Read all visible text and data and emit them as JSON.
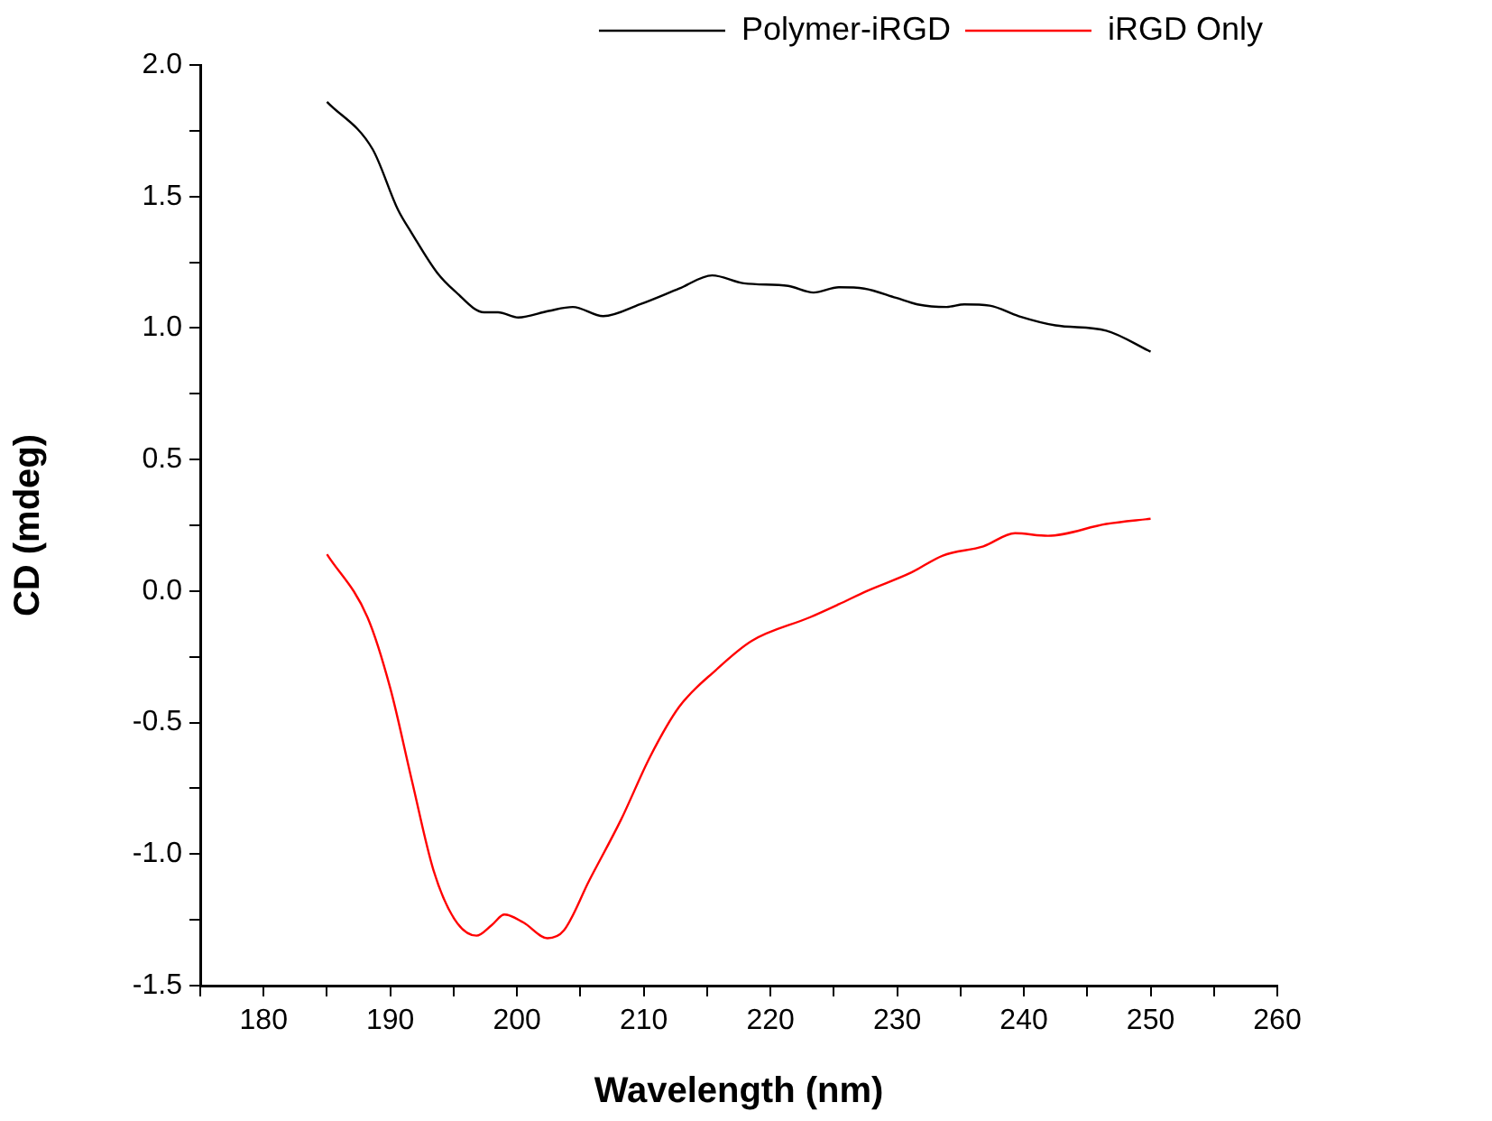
{
  "chart_data": {
    "type": "line",
    "xlabel": "Wavelength (nm)",
    "ylabel": "CD (mdeg)",
    "xlim": [
      175,
      260
    ],
    "xticks": [
      {
        "value": 175,
        "label": null
      },
      180,
      {
        "value": 185,
        "label": null
      },
      190,
      {
        "value": 195,
        "label": null
      },
      200,
      {
        "value": 205,
        "label": null
      },
      210,
      {
        "value": 215,
        "label": null
      },
      220,
      {
        "value": 225,
        "label": null
      },
      230,
      {
        "value": 235,
        "label": null
      },
      240,
      {
        "value": 245,
        "label": null
      },
      250,
      {
        "value": 255,
        "label": null
      },
      260
    ],
    "ylim": [
      -1.5,
      2.0
    ],
    "yticks": [
      {
        "value": -1.5,
        "label": "-1.5"
      },
      {
        "value": -1.25,
        "label": null
      },
      {
        "value": -1,
        "label": "-1.0"
      },
      {
        "value": -0.75,
        "label": null
      },
      {
        "value": -0.5,
        "label": "-0.5"
      },
      {
        "value": -0.25,
        "label": null
      },
      {
        "value": 0,
        "label": "0.0"
      },
      {
        "value": 0.25,
        "label": null
      },
      {
        "value": 0.5,
        "label": "0.5"
      },
      {
        "value": 0.75,
        "label": null
      },
      {
        "value": 1,
        "label": "1.0"
      },
      {
        "value": 1.25,
        "label": null
      },
      {
        "value": 1.5,
        "label": "1.5"
      },
      {
        "value": 1.75,
        "label": null
      },
      {
        "value": 2,
        "label": "2.0"
      }
    ],
    "grid": false,
    "legend": "top right",
    "marker": "none",
    "line_style": "solid",
    "series": [
      {
        "name": "Polymer-iRGD",
        "color": "#000000",
        "x": [
          185,
          188.6,
          190.6,
          191.7,
          193.7,
          195.1,
          197.4,
          198.5,
          200.1,
          202.5,
          204.4,
          206.8,
          209.7,
          212.8,
          215.4,
          217.9,
          221.4,
          223.4,
          225.4,
          227.4,
          229.9,
          231.6,
          233.9,
          235.3,
          237.3,
          239.6,
          242.5,
          246.5,
          250
        ],
        "values": [
          1.86,
          1.68,
          1.45,
          1.36,
          1.21,
          1.14,
          1.06,
          1.06,
          1.04,
          1.065,
          1.08,
          1.045,
          1.09,
          1.15,
          1.2,
          1.17,
          1.16,
          1.135,
          1.155,
          1.15,
          1.115,
          1.09,
          1.08,
          1.09,
          1.085,
          1.045,
          1.01,
          0.99,
          0.91
        ]
      },
      {
        "name": "iRGD Only",
        "color": "#ff0000",
        "x": [
          185,
          188.2,
          190,
          191.7,
          193.4,
          195.1,
          196.8,
          198,
          199,
          200.5,
          202.4,
          203.7,
          205.7,
          208.2,
          210.5,
          212.8,
          215.7,
          218.5,
          223.1,
          225.4,
          227.6,
          231.1,
          233.6,
          236.8,
          239.3,
          241.9,
          246.5,
          250
        ],
        "values": [
          0.14,
          -0.1,
          -0.37,
          -0.72,
          -1.06,
          -1.25,
          -1.31,
          -1.27,
          -1.23,
          -1.26,
          -1.32,
          -1.29,
          -1.1,
          -0.87,
          -0.63,
          -0.44,
          -0.3,
          -0.19,
          -0.1,
          -0.05,
          0.0,
          0.07,
          0.135,
          0.17,
          0.22,
          0.21,
          0.255,
          0.275
        ]
      }
    ]
  }
}
